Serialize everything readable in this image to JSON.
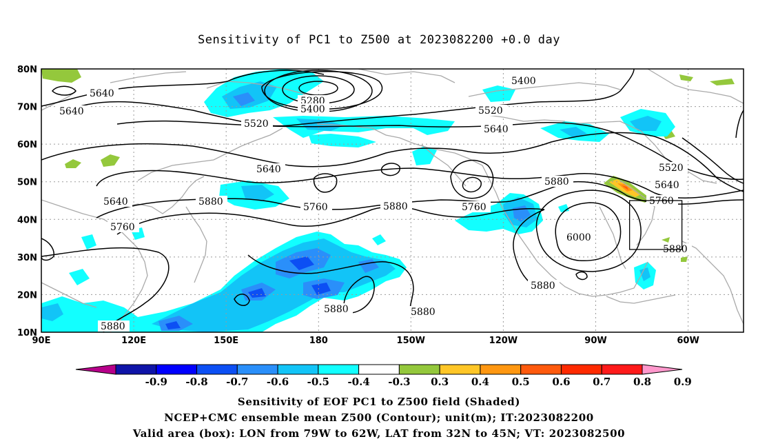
{
  "title": "Sensitivity of PC1 to Z500 at 2023082200 +0.0 day",
  "map": {
    "lat_ticks": [
      "80N",
      "70N",
      "60N",
      "50N",
      "40N",
      "30N",
      "20N",
      "10N"
    ],
    "lon_ticks": [
      "90E",
      "120E",
      "150E",
      "180",
      "150W",
      "120W",
      "90W",
      "60W"
    ],
    "contour_labels": [
      "5640",
      "5640",
      "5640",
      "5280",
      "5400",
      "5400",
      "5520",
      "5520",
      "5640",
      "5520",
      "5640",
      "5880",
      "5760",
      "5880",
      "5640",
      "5760",
      "5760",
      "5880",
      "5760",
      "6000",
      "5880",
      "5880",
      "5880",
      "5880",
      "5880"
    ],
    "valid_box": {
      "lon_west": -79,
      "lon_east": -62,
      "lat_south": 32,
      "lat_north": 45
    },
    "colors": {
      "contour": "#000000",
      "coast": "#a9a9a9",
      "grid": "#9a9a9a"
    }
  },
  "colorbar": {
    "labels": [
      "-0.9",
      "-0.8",
      "-0.7",
      "-0.6",
      "-0.5",
      "-0.4",
      "-0.3",
      "0.3",
      "0.4",
      "0.5",
      "0.6",
      "0.7",
      "0.8",
      "0.9"
    ],
    "colors": [
      "#b7008a",
      "#0f14a8",
      "#0000ff",
      "#0c4ff4",
      "#2a8ffa",
      "#12c4f7",
      "#12ffff",
      "#ffffff",
      "#94c83c",
      "#ffc627",
      "#ff9711",
      "#ff5a0d",
      "#ff2a00",
      "#ff1a1a",
      "#ff98cc"
    ]
  },
  "captions": [
    "Sensitivity of EOF PC1 to Z500 field (Shaded)",
    "NCEP+CMC ensemble mean Z500 (Contour); unit(m); IT:2023082200",
    "Valid area (box): LON from 79W to 62W, LAT from 32N to 45N; VT: 2023082500"
  ]
}
